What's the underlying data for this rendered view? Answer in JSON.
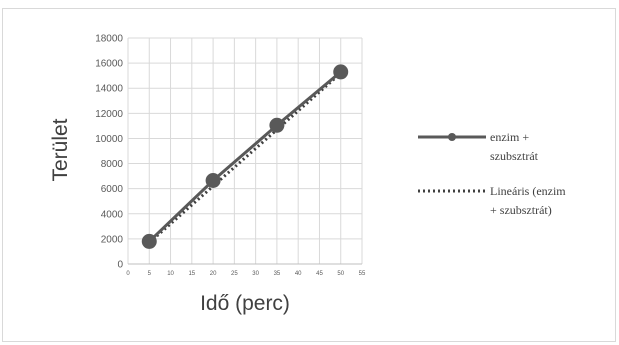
{
  "chart_data": {
    "type": "scatter",
    "title": "",
    "xlabel": "Idő (perc)",
    "ylabel": "Terület",
    "xlim": [
      0,
      55
    ],
    "ylim": [
      0,
      18000
    ],
    "x_ticks": [
      0,
      5,
      10,
      15,
      20,
      25,
      30,
      35,
      40,
      45,
      50,
      55
    ],
    "y_ticks": [
      0,
      2000,
      4000,
      6000,
      8000,
      10000,
      12000,
      14000,
      16000,
      18000
    ],
    "grid": true,
    "legend_position": "right",
    "series": [
      {
        "name": "enzim + szubsztrát",
        "name_lines": [
          "enzim +",
          "szubsztrát"
        ],
        "style": "solid-line-with-markers",
        "color": "#595959",
        "x": [
          5,
          20,
          35,
          50
        ],
        "y": [
          1800,
          6650,
          11050,
          15300
        ]
      }
    ],
    "trendline": {
      "name": "Lineáris (enzim + szubsztrát)",
      "name_lines": [
        "Lineáris (enzim",
        "+ szubsztrát)"
      ],
      "style": "dotted",
      "color": "#404040",
      "x": [
        5,
        50
      ],
      "y": [
        1700,
        15200
      ]
    }
  }
}
